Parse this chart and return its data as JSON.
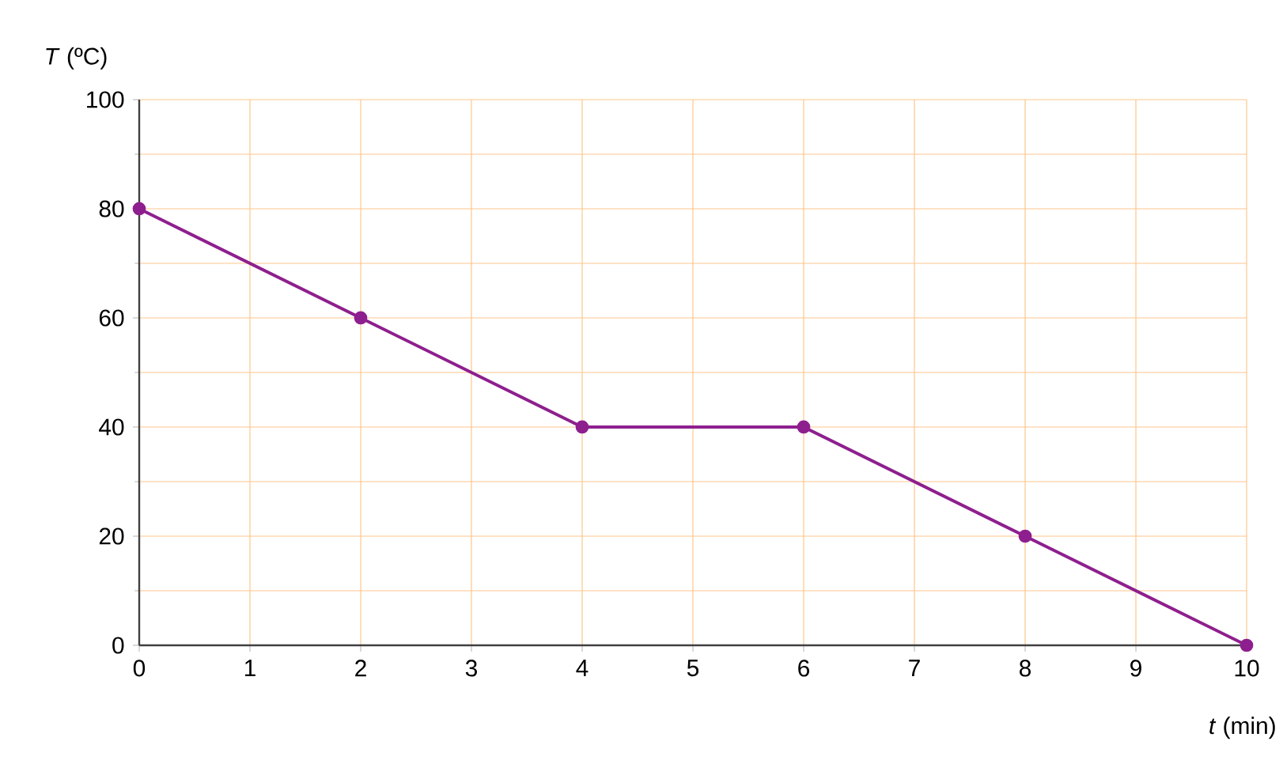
{
  "chart_data": {
    "type": "line",
    "xlabel": "*t* (min)",
    "ylabel": "*T* (ºC)",
    "x": [
      0,
      2,
      4,
      6,
      8,
      10
    ],
    "series": [
      {
        "color": "#8e1f8e",
        "values": [
          80,
          60,
          40,
          40,
          20,
          0
        ]
      }
    ],
    "xlim": [
      0,
      10
    ],
    "ylim": [
      0,
      100
    ],
    "xticks": [
      0,
      1,
      2,
      3,
      4,
      5,
      6,
      7,
      8,
      9,
      10
    ],
    "yticks": [
      0,
      20,
      40,
      60,
      80,
      100
    ],
    "grid": true,
    "marker": "circle",
    "line_style": "solid"
  }
}
